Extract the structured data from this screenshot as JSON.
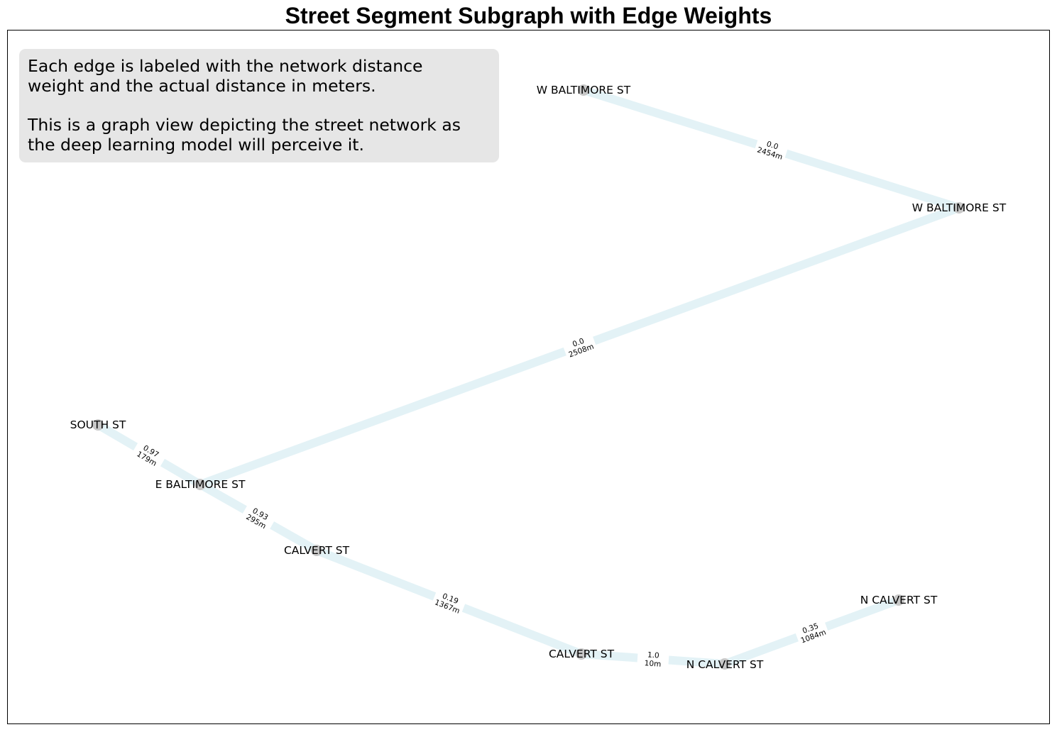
{
  "title": "Street Segment Subgraph with Edge Weights",
  "note": {
    "paragraph1": [
      "Each edge is labeled with the network distance",
      "weight and the actual distance in meters."
    ],
    "paragraph2": [
      "This is a graph view depicting the street network as",
      "the deep learning model will perceive it."
    ]
  },
  "colors": {
    "edge": "#e3f2f6",
    "node": "#c8c8c8",
    "note_bg": "#e6e6e6"
  },
  "nodes": [
    {
      "id": "n0",
      "label": "W BALTIMORE ST"
    },
    {
      "id": "n1",
      "label": "W BALTIMORE ST"
    },
    {
      "id": "n2",
      "label": "SOUTH ST"
    },
    {
      "id": "n3",
      "label": "E BALTIMORE ST"
    },
    {
      "id": "n4",
      "label": "CALVERT ST"
    },
    {
      "id": "n5",
      "label": "CALVERT ST"
    },
    {
      "id": "n6",
      "label": "N CALVERT ST"
    },
    {
      "id": "n7",
      "label": "N CALVERT ST"
    }
  ],
  "edges": [
    {
      "from": "n0",
      "to": "n1",
      "weight": "0.0",
      "distance": "2454m"
    },
    {
      "from": "n1",
      "to": "n3",
      "weight": "0.0",
      "distance": "2508m"
    },
    {
      "from": "n2",
      "to": "n3",
      "weight": "0.97",
      "distance": "179m"
    },
    {
      "from": "n3",
      "to": "n4",
      "weight": "0.93",
      "distance": "295m"
    },
    {
      "from": "n4",
      "to": "n5",
      "weight": "0.19",
      "distance": "1367m"
    },
    {
      "from": "n5",
      "to": "n6",
      "weight": "1.0",
      "distance": "10m"
    },
    {
      "from": "n6",
      "to": "n7",
      "weight": "0.35",
      "distance": "1084m"
    }
  ]
}
